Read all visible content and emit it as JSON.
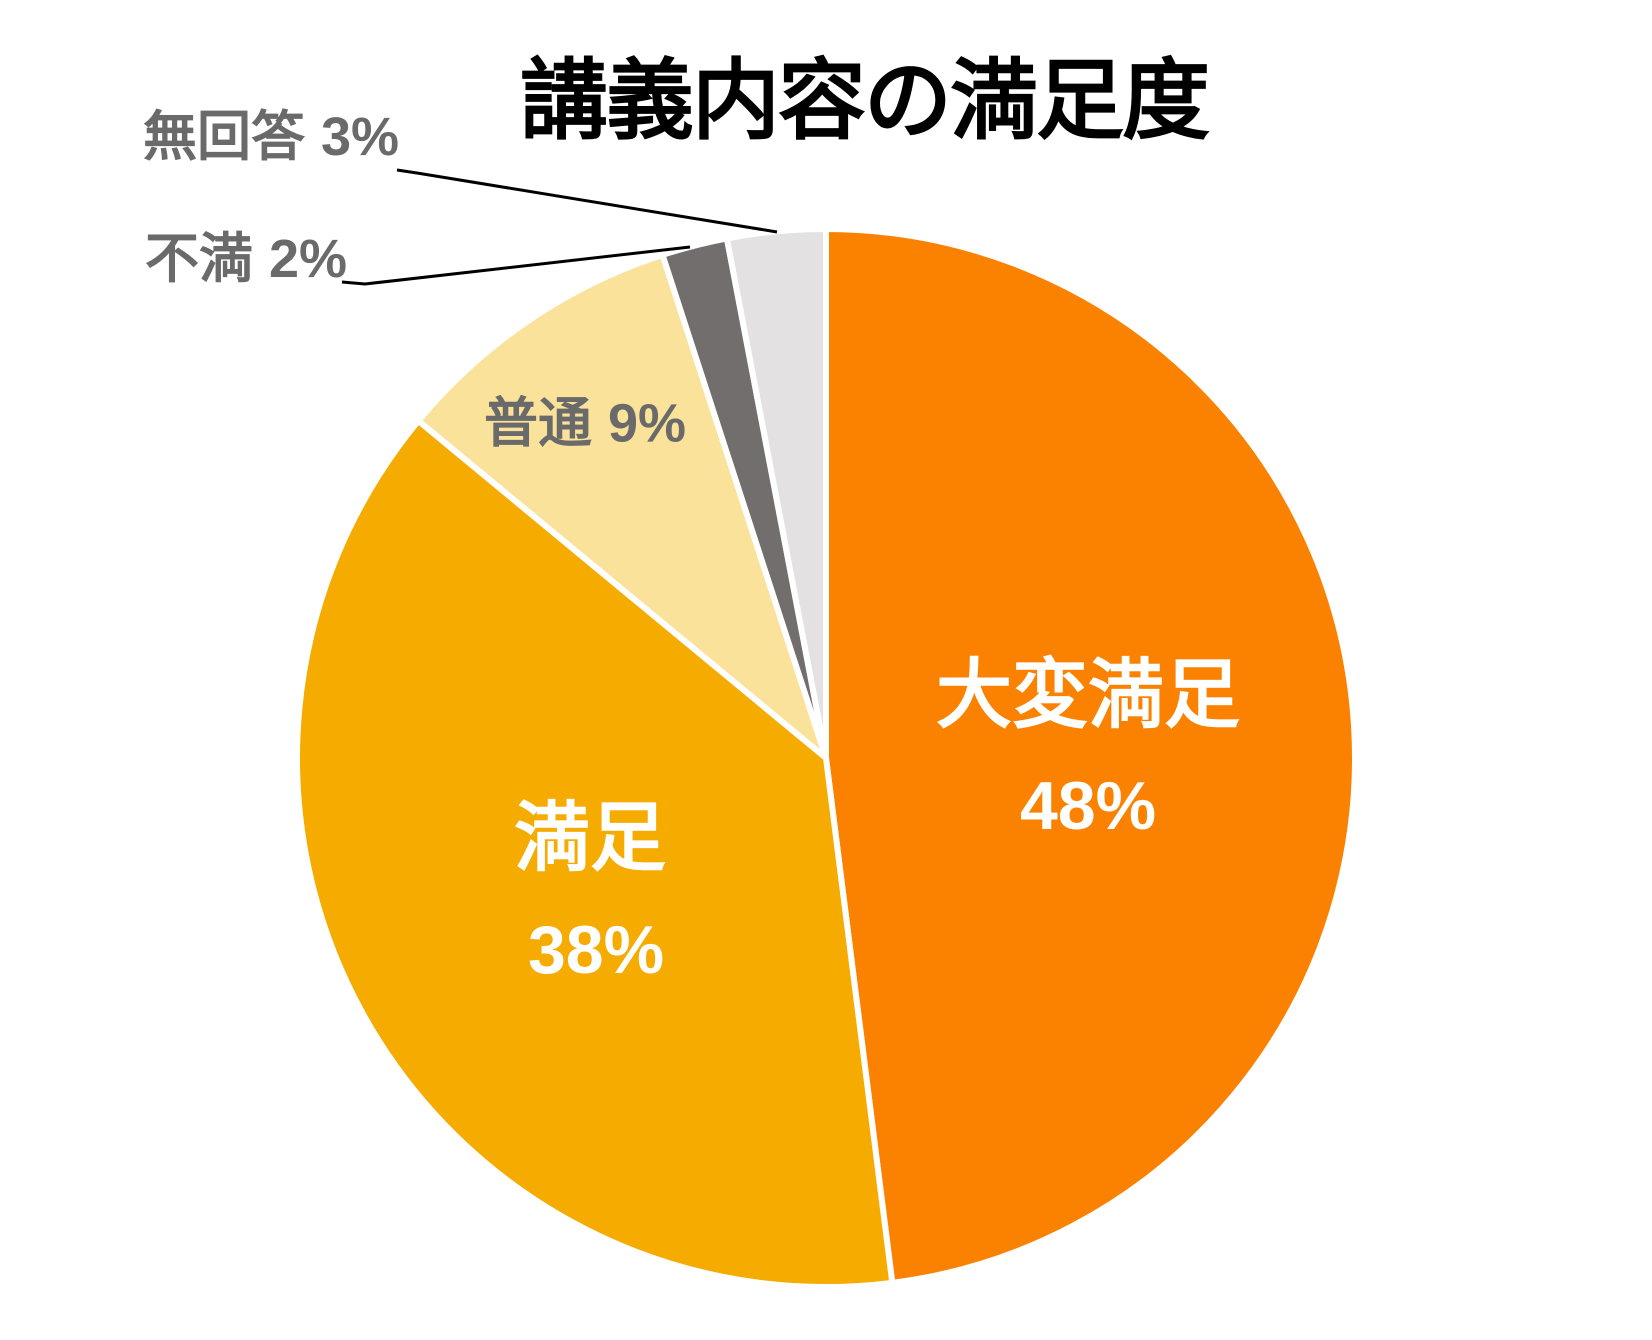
{
  "title": "講義内容の満足度",
  "chart_data": {
    "type": "pie",
    "title": "講義内容の満足度",
    "start_angle_deg": 0,
    "direction": "clockwise",
    "total": 100,
    "slice_border_color": "#FFFFFF",
    "leader_line_color": "#000000",
    "outside_label_color": "#6A6A6A",
    "inside_label_color": "#FFFFFF",
    "slices": [
      {
        "label": "大変満足",
        "value": 48,
        "pct_text": "48%",
        "color": "#FB8200",
        "label_position": "inside"
      },
      {
        "label": "満足",
        "value": 38,
        "pct_text": "38%",
        "color": "#F5AB00",
        "label_position": "inside"
      },
      {
        "label": "普通",
        "value": 9,
        "pct_text": "9%",
        "color": "#FAE29B",
        "label_position": "inside"
      },
      {
        "label": "不満",
        "value": 2,
        "pct_text": "2%",
        "color": "#736E6E",
        "label_position": "outside"
      },
      {
        "label": "無回答",
        "value": 3,
        "pct_text": "3%",
        "color": "#E3E1E1",
        "label_position": "outside"
      }
    ]
  }
}
